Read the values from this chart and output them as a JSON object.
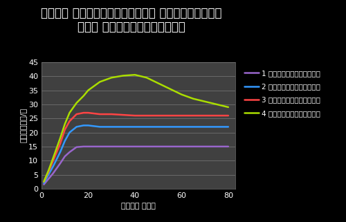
{
  "title_line1": "ユーザー ロードがさまざまなクエリ コンポーネント数の",
  "title_line2": "クエリ スループットに与える影響",
  "xlabel": "ユーザー ロード",
  "ylabel": "リクエスト数/秒",
  "background_color": "#000000",
  "plot_bg_color": "#404040",
  "xlim": [
    0,
    83
  ],
  "ylim": [
    0,
    45
  ],
  "xticks": [
    0,
    20,
    40,
    60,
    80
  ],
  "yticks": [
    0,
    5,
    10,
    15,
    20,
    25,
    30,
    35,
    40,
    45
  ],
  "series": [
    {
      "label": "1 つのクエリコンポーネント",
      "color": "#9966cc",
      "x": [
        1,
        3,
        5,
        8,
        10,
        12,
        15,
        18,
        20,
        25,
        30,
        40,
        50,
        60,
        70,
        80
      ],
      "y": [
        1.5,
        3.5,
        5.5,
        9.0,
        11.5,
        13.0,
        14.8,
        15.0,
        15.0,
        15.0,
        15.0,
        15.0,
        15.0,
        15.0,
        15.0,
        15.0
      ]
    },
    {
      "label": "2 つのクエリコンポーネント",
      "color": "#3399ff",
      "x": [
        1,
        3,
        5,
        8,
        10,
        12,
        15,
        18,
        20,
        25,
        30,
        40,
        50,
        60,
        70,
        80
      ],
      "y": [
        2.0,
        5.0,
        8.0,
        13.0,
        17.0,
        20.0,
        22.0,
        22.5,
        22.5,
        22.0,
        22.0,
        22.0,
        22.0,
        22.0,
        22.0,
        22.0
      ]
    },
    {
      "label": "3 つのクエリコンポーネント",
      "color": "#ff4444",
      "x": [
        1,
        3,
        5,
        8,
        10,
        12,
        15,
        18,
        20,
        25,
        30,
        40,
        50,
        60,
        70,
        80
      ],
      "y": [
        2.5,
        6.0,
        10.0,
        16.0,
        21.0,
        24.0,
        26.5,
        27.0,
        27.0,
        26.5,
        26.5,
        26.0,
        26.0,
        26.0,
        26.0,
        26.0
      ]
    },
    {
      "label": "4 つのクエリコンポーネント",
      "color": "#aadd00",
      "x": [
        1,
        3,
        5,
        8,
        10,
        12,
        15,
        18,
        20,
        25,
        30,
        35,
        40,
        45,
        50,
        55,
        60,
        65,
        70,
        75,
        80
      ],
      "y": [
        2.5,
        6.5,
        11.0,
        18.0,
        23.0,
        27.0,
        30.5,
        33.0,
        35.0,
        38.0,
        39.5,
        40.2,
        40.5,
        39.5,
        37.5,
        35.5,
        33.5,
        32.0,
        31.0,
        30.0,
        29.0
      ]
    }
  ],
  "title_fontsize": 12,
  "label_fontsize": 8,
  "tick_fontsize": 8,
  "legend_fontsize": 7.5,
  "line_width": 1.8
}
